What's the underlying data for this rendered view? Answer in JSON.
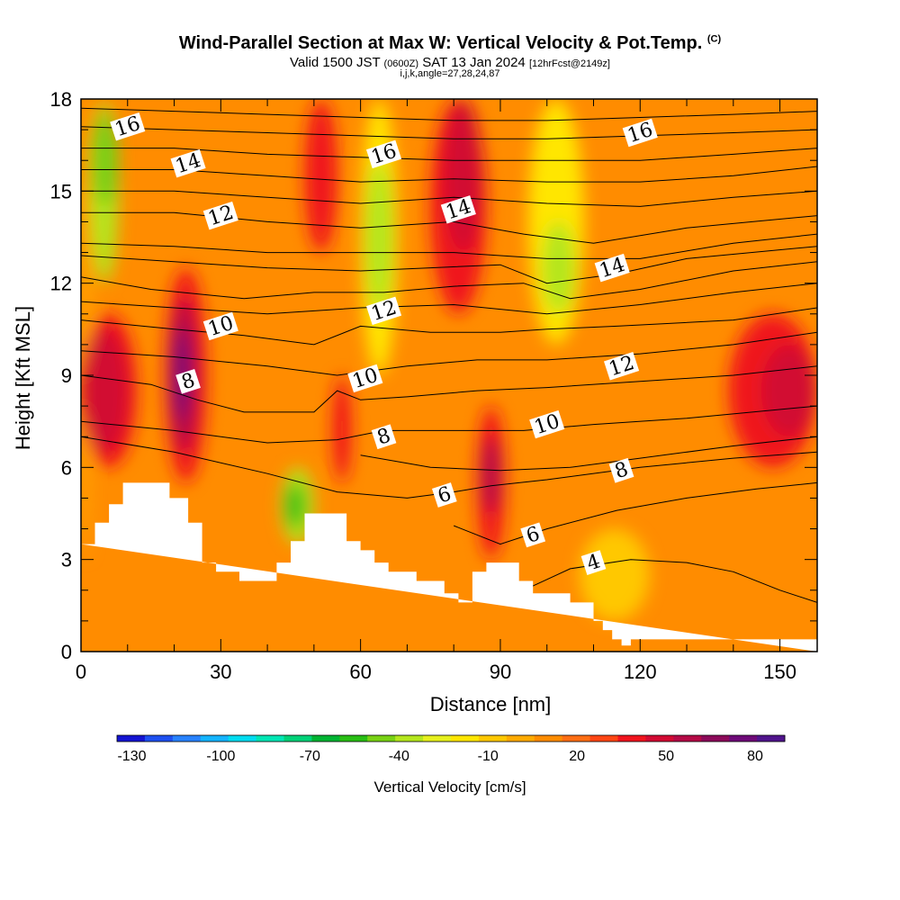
{
  "header": {
    "title": "Wind-Parallel Section at Max W: Vertical Velocity & Pot.Temp.",
    "copyright": "(C)",
    "valid_prefix": "Valid 1500 JST",
    "valid_utc": "(0600Z)",
    "valid_date": "SAT 13 Jan 2024",
    "forecast": "[12hrFcst@2149z]",
    "indices": "i,j,k,angle=27,28,24,87"
  },
  "chart_data": {
    "type": "heatmap",
    "xlabel": "Distance [nm]",
    "ylabel": "Height [Kft MSL]",
    "xlim": [
      0,
      158
    ],
    "ylim": [
      0,
      18
    ],
    "x_ticks": [
      0,
      30,
      60,
      90,
      120,
      150
    ],
    "x_tick_labels": [
      "0",
      "30",
      "60",
      "90",
      "120",
      "150"
    ],
    "y_ticks": [
      0,
      3,
      6,
      9,
      12,
      15,
      18
    ],
    "y_tick_labels": [
      "0",
      "3",
      "6",
      "9",
      "12",
      "15",
      "18"
    ],
    "colorbar": {
      "label": "Vertical Velocity [cm/s]",
      "range": [
        -135,
        90
      ],
      "tick_labels": [
        "-130",
        "-100",
        "-70",
        "-40",
        "-10",
        "20",
        "50",
        "80"
      ],
      "tick_values": [
        -130,
        -100,
        -70,
        -40,
        -10,
        20,
        50,
        80
      ],
      "colors": [
        "#1414d2",
        "#1e50f0",
        "#2882ff",
        "#14b4ff",
        "#00dcf0",
        "#00e6b4",
        "#00d278",
        "#00b432",
        "#28be14",
        "#78d214",
        "#b4e61e",
        "#e6f01e",
        "#ffe600",
        "#ffc800",
        "#ffaa00",
        "#ff8c00",
        "#ff6e14",
        "#ff4614",
        "#f0141e",
        "#d20a32",
        "#b40a46",
        "#8c0a5a",
        "#6e0a78",
        "#50148c"
      ]
    },
    "terrain": [
      [
        0,
        3.5
      ],
      [
        3,
        3.5
      ],
      [
        3,
        4.2
      ],
      [
        6,
        4.2
      ],
      [
        6,
        4.8
      ],
      [
        9,
        4.8
      ],
      [
        9,
        5.5
      ],
      [
        19,
        5.5
      ],
      [
        19,
        5.0
      ],
      [
        23,
        5.0
      ],
      [
        23,
        4.2
      ],
      [
        26,
        4.2
      ],
      [
        26,
        2.9
      ],
      [
        29,
        2.9
      ],
      [
        29,
        2.6
      ],
      [
        34,
        2.6
      ],
      [
        34,
        2.3
      ],
      [
        42,
        2.3
      ],
      [
        42,
        2.9
      ],
      [
        45,
        2.9
      ],
      [
        45,
        3.6
      ],
      [
        48,
        3.6
      ],
      [
        48,
        4.5
      ],
      [
        57,
        4.5
      ],
      [
        57,
        3.6
      ],
      [
        60,
        3.6
      ],
      [
        60,
        3.3
      ],
      [
        63,
        3.3
      ],
      [
        63,
        2.9
      ],
      [
        66,
        2.9
      ],
      [
        66,
        2.6
      ],
      [
        72,
        2.6
      ],
      [
        72,
        2.3
      ],
      [
        78,
        2.3
      ],
      [
        78,
        1.9
      ],
      [
        81,
        1.9
      ],
      [
        81,
        1.6
      ],
      [
        84,
        1.6
      ],
      [
        84,
        2.6
      ],
      [
        87,
        2.6
      ],
      [
        87,
        2.9
      ],
      [
        94,
        2.9
      ],
      [
        94,
        2.3
      ],
      [
        97,
        2.3
      ],
      [
        97,
        1.9
      ],
      [
        105,
        1.9
      ],
      [
        105,
        1.6
      ],
      [
        110,
        1.6
      ],
      [
        110,
        1.0
      ],
      [
        112,
        1.0
      ],
      [
        112,
        0.7
      ],
      [
        114,
        0.7
      ],
      [
        114,
        0.4
      ],
      [
        116,
        0.4
      ],
      [
        116,
        0.2
      ],
      [
        118,
        0.2
      ],
      [
        118,
        0.4
      ],
      [
        158,
        0.4
      ],
      [
        158,
        0
      ]
    ],
    "velocity_cells": [
      {
        "x": [
          0,
          2
        ],
        "y": [
          3,
          18
        ],
        "w": 5
      },
      {
        "x": [
          2,
          8
        ],
        "y": [
          12,
          17.9
        ],
        "w": -40
      },
      {
        "x": [
          2,
          8
        ],
        "y": [
          14.5,
          17.5
        ],
        "w": -50
      },
      {
        "x": [
          0,
          12
        ],
        "y": [
          6,
          11
        ],
        "w": 40
      },
      {
        "x": [
          0,
          10
        ],
        "y": [
          6.5,
          10.5
        ],
        "w": 50
      },
      {
        "x": [
          18,
          27
        ],
        "y": [
          5.5,
          12.5
        ],
        "w": 35
      },
      {
        "x": [
          19,
          25
        ],
        "y": [
          6.5,
          11.5
        ],
        "w": 55
      },
      {
        "x": [
          20,
          23
        ],
        "y": [
          7.5,
          10.5
        ],
        "w": 80
      },
      {
        "x": [
          43,
          50
        ],
        "y": [
          3.5,
          6
        ],
        "w": -40
      },
      {
        "x": [
          44,
          48
        ],
        "y": [
          4,
          5.5
        ],
        "w": -55
      },
      {
        "x": [
          48,
          55
        ],
        "y": [
          13,
          18
        ],
        "w": 40
      },
      {
        "x": [
          54,
          58
        ],
        "y": [
          5.5,
          9
        ],
        "w": 40
      },
      {
        "x": [
          60,
          68
        ],
        "y": [
          9,
          18
        ],
        "w": -20
      },
      {
        "x": [
          61,
          67
        ],
        "y": [
          11,
          16
        ],
        "w": -40
      },
      {
        "x": [
          75,
          87
        ],
        "y": [
          11,
          18
        ],
        "w": 40
      },
      {
        "x": [
          78,
          86
        ],
        "y": [
          13,
          18
        ],
        "w": 50
      },
      {
        "x": [
          85,
          91
        ],
        "y": [
          3,
          8
        ],
        "w": 40
      },
      {
        "x": [
          86,
          90
        ],
        "y": [
          4.5,
          7
        ],
        "w": 60
      },
      {
        "x": [
          96,
          108
        ],
        "y": [
          10,
          18
        ],
        "w": -20
      },
      {
        "x": [
          99,
          106
        ],
        "y": [
          11,
          14
        ],
        "w": -40
      },
      {
        "x": [
          139,
          158
        ],
        "y": [
          6,
          11
        ],
        "w": 35
      },
      {
        "x": [
          146,
          158
        ],
        "y": [
          7,
          10
        ],
        "w": 50
      },
      {
        "x": [
          107,
          122
        ],
        "y": [
          1,
          4
        ],
        "w": -10
      }
    ],
    "isentropes": [
      {
        "label": "4",
        "label_x": 110,
        "label_y": 2.9,
        "points": [
          [
            95,
            2.0
          ],
          [
            105,
            2.7
          ],
          [
            118,
            3.0
          ],
          [
            130,
            2.9
          ],
          [
            140,
            2.6
          ],
          [
            150,
            2.0
          ],
          [
            158,
            1.6
          ]
        ]
      },
      {
        "label": "6",
        "label_x": 97,
        "label_y": 3.8,
        "points": [
          [
            80,
            4.1
          ],
          [
            90,
            3.5
          ],
          [
            100,
            4.0
          ],
          [
            115,
            4.6
          ],
          [
            130,
            5.0
          ],
          [
            145,
            5.3
          ],
          [
            158,
            5.5
          ]
        ]
      },
      {
        "label": "6",
        "label_x": 78,
        "label_y": 5.1,
        "points": [
          [
            0,
            7.0
          ],
          [
            20,
            6.5
          ],
          [
            40,
            5.8
          ],
          [
            55,
            5.2
          ],
          [
            70,
            5.0
          ],
          [
            80,
            5.2
          ],
          [
            88,
            5.4
          ],
          [
            100,
            5.6
          ],
          [
            120,
            6.0
          ],
          [
            140,
            6.3
          ],
          [
            158,
            6.5
          ]
        ]
      },
      {
        "label": "8",
        "label_x": 116,
        "label_y": 5.9,
        "points": [
          [
            60,
            6.4
          ],
          [
            75,
            6.0
          ],
          [
            90,
            5.9
          ],
          [
            105,
            6.0
          ],
          [
            120,
            6.3
          ],
          [
            140,
            6.7
          ],
          [
            158,
            7.0
          ]
        ]
      },
      {
        "label": "8",
        "label_x": 65,
        "label_y": 7.0,
        "points": [
          [
            0,
            7.5
          ],
          [
            20,
            7.2
          ],
          [
            40,
            6.8
          ],
          [
            55,
            6.9
          ],
          [
            65,
            7.2
          ],
          [
            80,
            7.2
          ],
          [
            95,
            7.2
          ],
          [
            110,
            7.4
          ],
          [
            130,
            7.6
          ],
          [
            158,
            8.0
          ]
        ]
      },
      {
        "label": "8",
        "label_x": 23,
        "label_y": 8.8,
        "points": [
          [
            0,
            9.0
          ],
          [
            15,
            8.7
          ],
          [
            25,
            8.2
          ],
          [
            35,
            7.8
          ],
          [
            50,
            7.8
          ],
          [
            55,
            8.5
          ],
          [
            60,
            8.2
          ],
          [
            70,
            8.3
          ],
          [
            85,
            8.5
          ],
          [
            100,
            8.6
          ],
          [
            120,
            8.8
          ],
          [
            140,
            9.0
          ],
          [
            158,
            9.3
          ]
        ]
      },
      {
        "label": "10",
        "label_x": 100,
        "label_y": 7.4,
        "points": [
          [
            0,
            9.8
          ],
          [
            20,
            9.6
          ],
          [
            40,
            9.3
          ],
          [
            55,
            9.0
          ],
          [
            70,
            9.3
          ],
          [
            85,
            9.5
          ],
          [
            100,
            9.5
          ],
          [
            120,
            9.7
          ],
          [
            140,
            10.0
          ],
          [
            158,
            10.4
          ]
        ]
      },
      {
        "label": "10",
        "label_x": 61,
        "label_y": 8.9,
        "points": [
          [
            0,
            10.8
          ],
          [
            20,
            10.5
          ],
          [
            35,
            10.3
          ],
          [
            50,
            10.0
          ],
          [
            60,
            10.6
          ],
          [
            75,
            10.4
          ],
          [
            90,
            10.4
          ],
          [
            100,
            10.5
          ],
          [
            115,
            10.6
          ],
          [
            140,
            10.8
          ],
          [
            158,
            11.2
          ]
        ]
      },
      {
        "label": "12",
        "label_x": 116,
        "label_y": 9.3,
        "points": [
          [
            0,
            11.4
          ],
          [
            20,
            11.2
          ],
          [
            40,
            11.0
          ],
          [
            60,
            11.2
          ],
          [
            80,
            11.3
          ],
          [
            100,
            11.0
          ],
          [
            120,
            11.3
          ],
          [
            140,
            11.7
          ],
          [
            158,
            12.0
          ]
        ]
      },
      {
        "label": "10",
        "label_x": 30,
        "label_y": 10.6,
        "points": [
          [
            0,
            12.2
          ],
          [
            15,
            11.8
          ],
          [
            35,
            11.5
          ],
          [
            50,
            11.7
          ],
          [
            65,
            11.7
          ],
          [
            80,
            11.9
          ],
          [
            95,
            12.0
          ],
          [
            105,
            11.5
          ],
          [
            120,
            11.8
          ],
          [
            140,
            12.4
          ],
          [
            158,
            12.7
          ]
        ]
      },
      {
        "label": "12",
        "label_x": 65,
        "label_y": 11.1,
        "points": [
          [
            0,
            12.9
          ],
          [
            20,
            12.7
          ],
          [
            40,
            12.5
          ],
          [
            60,
            12.4
          ],
          [
            75,
            12.5
          ],
          [
            90,
            12.6
          ],
          [
            100,
            12.0
          ],
          [
            115,
            12.3
          ],
          [
            130,
            12.8
          ],
          [
            158,
            13.2
          ]
        ]
      },
      {
        "label": "14",
        "label_x": 114,
        "label_y": 12.5,
        "points": [
          [
            0,
            13.3
          ],
          [
            20,
            13.2
          ],
          [
            40,
            13.0
          ],
          [
            60,
            13.0
          ],
          [
            80,
            13.0
          ],
          [
            100,
            12.8
          ],
          [
            120,
            12.8
          ],
          [
            140,
            13.3
          ],
          [
            158,
            13.6
          ]
        ]
      },
      {
        "label": "12",
        "label_x": 30,
        "label_y": 14.2,
        "points": [
          [
            0,
            14.3
          ],
          [
            20,
            14.3
          ],
          [
            40,
            14.0
          ],
          [
            60,
            13.8
          ],
          [
            80,
            14.0
          ],
          [
            95,
            13.6
          ],
          [
            110,
            13.3
          ],
          [
            130,
            13.8
          ],
          [
            158,
            14.2
          ]
        ]
      },
      {
        "label": "14",
        "label_x": 81,
        "label_y": 14.4,
        "points": [
          [
            0,
            15.0
          ],
          [
            20,
            15.0
          ],
          [
            40,
            14.8
          ],
          [
            60,
            14.6
          ],
          [
            80,
            14.8
          ],
          [
            100,
            14.6
          ],
          [
            120,
            14.5
          ],
          [
            140,
            14.8
          ],
          [
            158,
            15.0
          ]
        ]
      },
      {
        "label": "14",
        "label_x": 23,
        "label_y": 15.9,
        "points": [
          [
            0,
            15.7
          ],
          [
            20,
            15.7
          ],
          [
            40,
            15.5
          ],
          [
            60,
            15.3
          ],
          [
            80,
            15.4
          ],
          [
            100,
            15.3
          ],
          [
            120,
            15.3
          ],
          [
            140,
            15.5
          ],
          [
            158,
            15.8
          ]
        ]
      },
      {
        "label": "16",
        "label_x": 65,
        "label_y": 16.2,
        "points": [
          [
            0,
            16.4
          ],
          [
            20,
            16.4
          ],
          [
            40,
            16.2
          ],
          [
            60,
            16.1
          ],
          [
            80,
            16.0
          ],
          [
            100,
            16.0
          ],
          [
            120,
            16.0
          ],
          [
            140,
            16.2
          ],
          [
            158,
            16.4
          ]
        ]
      },
      {
        "label": "16",
        "label_x": 10,
        "label_y": 17.1,
        "points": [
          [
            0,
            17.1
          ],
          [
            20,
            17.0
          ],
          [
            40,
            16.9
          ],
          [
            60,
            16.8
          ],
          [
            80,
            16.7
          ],
          [
            100,
            16.7
          ],
          [
            120,
            16.8
          ],
          [
            140,
            16.9
          ],
          [
            158,
            17.0
          ]
        ]
      },
      {
        "label": "16",
        "label_x": 120,
        "label_y": 16.9,
        "points": [
          [
            0,
            17.7
          ],
          [
            20,
            17.6
          ],
          [
            40,
            17.5
          ],
          [
            60,
            17.4
          ],
          [
            80,
            17.3
          ],
          [
            100,
            17.3
          ],
          [
            120,
            17.4
          ],
          [
            140,
            17.5
          ],
          [
            158,
            17.6
          ]
        ]
      }
    ]
  }
}
